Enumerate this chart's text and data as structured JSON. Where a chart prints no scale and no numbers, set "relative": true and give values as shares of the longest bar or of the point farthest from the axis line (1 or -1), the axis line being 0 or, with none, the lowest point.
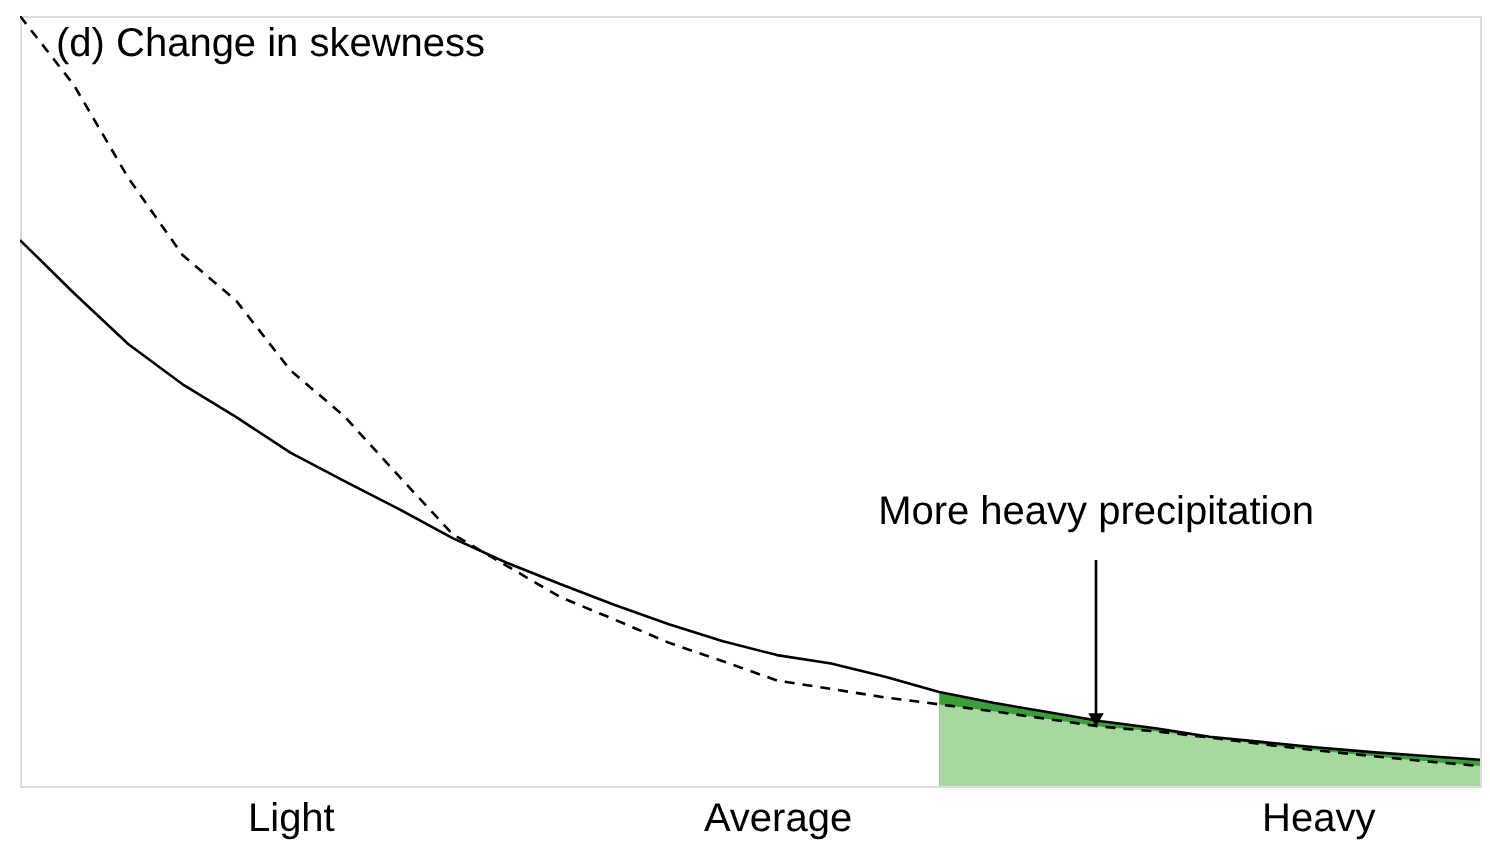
{
  "chart_data": {
    "type": "line",
    "title": "(d) Change in skewness",
    "relative": true,
    "categories": [
      null,
      null,
      null,
      null,
      null,
      "Light",
      null,
      null,
      null,
      null,
      null,
      null,
      null,
      null,
      "Average",
      null,
      null,
      null,
      null,
      null,
      null,
      null,
      null,
      null,
      "Heavy",
      null,
      null,
      null
    ],
    "tick_labels": "x",
    "grid": false,
    "marker": "none",
    "annotations": [
      "More heavy precipitation"
    ],
    "series": [
      {
        "type": "area",
        "color": "#3a9e3a",
        "values": [
          null,
          null,
          null,
          null,
          null,
          null,
          null,
          null,
          null,
          null,
          null,
          null,
          null,
          null,
          null,
          null,
          null,
          0.122,
          0.108,
          0.096,
          0.084,
          0.075,
          0.064,
          0.057,
          0.05,
          0.044,
          0.039,
          0.034
        ]
      },
      {
        "type": "area",
        "color": "#a6d99e",
        "values": [
          null,
          null,
          null,
          null,
          null,
          null,
          null,
          null,
          null,
          null,
          null,
          null,
          null,
          null,
          null,
          null,
          null,
          0.106,
          0.097,
          0.087,
          0.077,
          0.071,
          0.063,
          0.054,
          0.046,
          0.039,
          0.032,
          0.026
        ]
      },
      {
        "color": "#000000",
        "line_style": "solid",
        "values": [
          0.709,
          0.64,
          0.574,
          0.522,
          0.479,
          0.433,
          0.396,
          0.36,
          0.322,
          0.29,
          0.262,
          0.235,
          0.21,
          0.188,
          0.17,
          0.159,
          0.142,
          0.122,
          0.108,
          0.096,
          0.084,
          0.075,
          0.064,
          0.057,
          0.05,
          0.044,
          0.039,
          0.034
        ]
      },
      {
        "color": "#000000",
        "line_style": "dashed",
        "values": [
          1.0,
          0.91,
          0.79,
          0.69,
          0.63,
          0.54,
          0.48,
          0.403,
          0.327,
          0.286,
          0.245,
          0.216,
          0.186,
          0.162,
          0.137,
          0.126,
          0.115,
          0.106,
          0.097,
          0.087,
          0.077,
          0.071,
          0.063,
          0.054,
          0.046,
          0.039,
          0.032,
          0.026
        ]
      }
    ]
  }
}
